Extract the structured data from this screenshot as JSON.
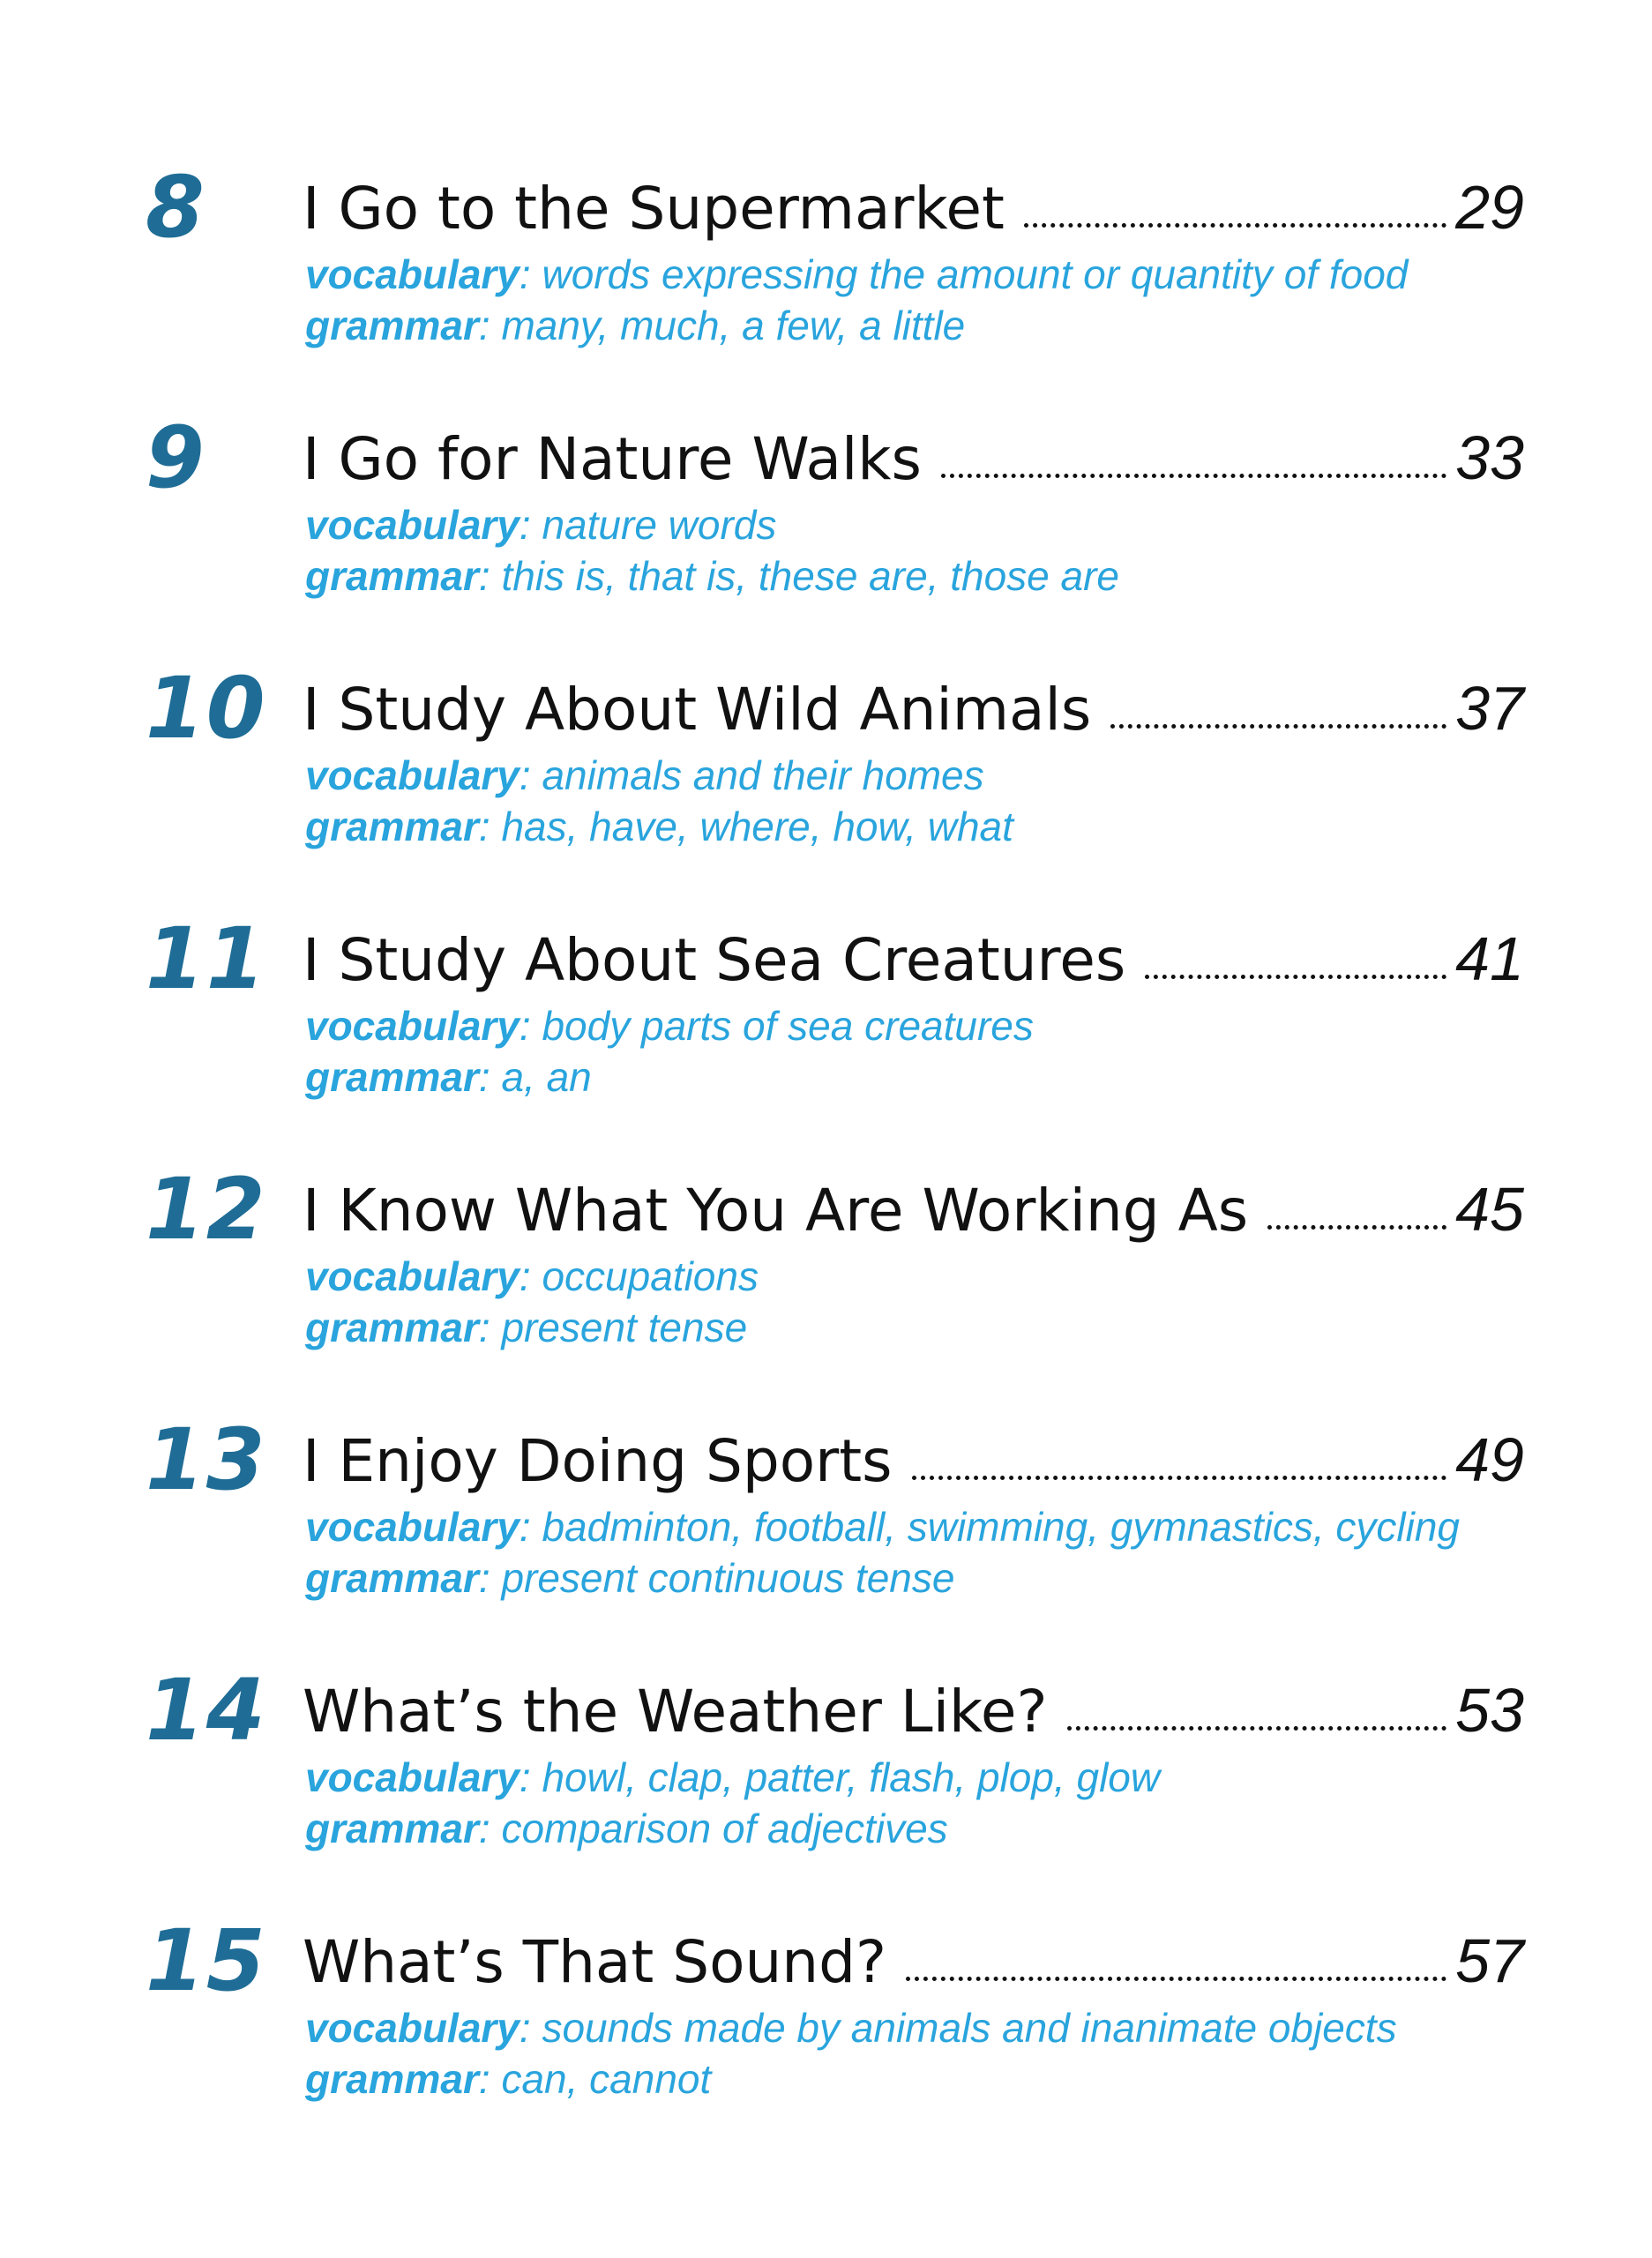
{
  "colors": {
    "number": "#1f6d96",
    "title": "#111111",
    "accent": "#29a4dd"
  },
  "labels": {
    "vocabulary": "vocabulary",
    "grammar": "grammar",
    "separator": ": "
  },
  "entries": [
    {
      "number": "8",
      "title": "I Go to the Supermarket",
      "page": "29",
      "vocabulary": "words expressing the amount or quantity of food",
      "grammar": "many, much, a few, a little"
    },
    {
      "number": "9",
      "title": "I Go for Nature Walks",
      "page": "33",
      "vocabulary": "nature words",
      "grammar": "this is, that is, these are, those are"
    },
    {
      "number": "10",
      "title": "I Study About Wild Animals",
      "page": "37",
      "vocabulary": "animals and their homes",
      "grammar": "has, have, where, how, what"
    },
    {
      "number": "11",
      "title": "I Study About Sea Creatures",
      "page": "41",
      "vocabulary": "body parts of sea creatures",
      "grammar": "a, an"
    },
    {
      "number": "12",
      "title": "I Know What You Are Working As",
      "page": "45",
      "vocabulary": "occupations",
      "grammar": "present tense"
    },
    {
      "number": "13",
      "title": "I Enjoy Doing Sports",
      "page": "49",
      "vocabulary": "badminton, football, swimming, gymnastics, cycling",
      "grammar": "present continuous tense"
    },
    {
      "number": "14",
      "title": "What’s the Weather Like?",
      "page": "53",
      "vocabulary": "howl, clap, patter, flash, plop, glow",
      "grammar": "comparison of adjectives"
    },
    {
      "number": "15",
      "title": "What’s That Sound?",
      "page": "57",
      "vocabulary": "sounds made by animals and inanimate objects",
      "grammar": "can, cannot"
    }
  ]
}
